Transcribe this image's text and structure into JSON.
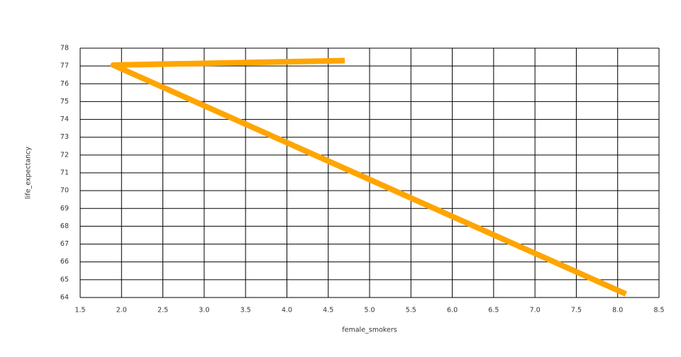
{
  "chart_data": {
    "type": "line",
    "x_label": "female_smokers",
    "y_label": "life_expectancy",
    "x": [
      4.7,
      1.9,
      8.1
    ],
    "series": [
      {
        "color": "#ffa500",
        "values": [
          77.3,
          77.05,
          64.2
        ]
      }
    ],
    "xlim": [
      1.5,
      8.5
    ],
    "xticks": [
      1.5,
      {
        "value": 2,
        "label": "2.0"
      },
      2.5,
      {
        "value": 3,
        "label": "3.0"
      },
      3.5,
      {
        "value": 4,
        "label": "4.0"
      },
      4.5,
      {
        "value": 5,
        "label": "5.0"
      },
      5.5,
      {
        "value": 6,
        "label": "6.0"
      },
      6.5,
      {
        "value": 7,
        "label": "7.0"
      },
      7.5,
      {
        "value": 8,
        "label": "8.0"
      },
      8.5
    ],
    "ylim": [
      64,
      78
    ],
    "yticks": [
      64,
      65,
      66,
      67,
      68,
      69,
      70,
      71,
      72,
      73,
      74,
      75,
      76,
      77,
      78
    ],
    "grid": true
  }
}
